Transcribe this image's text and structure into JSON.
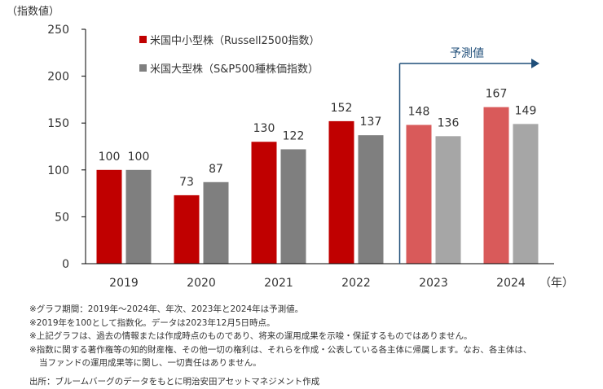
{
  "chart_data": {
    "type": "bar",
    "ylabel": "（指数値）",
    "xunit": "（年）",
    "ylim": [
      0,
      250
    ],
    "yticks": [
      0,
      50,
      100,
      150,
      200,
      250
    ],
    "categories": [
      "2019",
      "2020",
      "2021",
      "2022",
      "2023",
      "2024"
    ],
    "forecast_label": "予測値",
    "forecast_start_category": "2023",
    "series": [
      {
        "name": "米国中小型株（Russell2500指数）",
        "values": [
          100,
          73,
          130,
          152,
          148,
          167
        ],
        "color": "#c00000",
        "forecast_color": "#d95a5a"
      },
      {
        "name": "米国大型株（S&P500種株価指数）",
        "values": [
          100,
          87,
          122,
          137,
          136,
          149
        ],
        "color": "#7f7f7f",
        "forecast_color": "#a6a6a6"
      }
    ],
    "legend": "top-left",
    "grid": false
  },
  "colors": {
    "axis": "#000000",
    "arrow": "#1f4e79",
    "text": "#333333"
  },
  "notes": [
    "※グラフ期間：2019年～2024年、年次、2023年と2024年は予測値。",
    "※2019年を100として指数化。データは2023年12月5日時点。",
    "※上記グラフは、過去の情報または作成時点のものであり、将来の運用成果を示唆・保証するものではありません。",
    "※指数に関する著作権等の知的財産権、その他一切の権利は、それらを作成・公表している各主体に帰属します。なお、各主体は、",
    "当ファンドの運用成果等に関し、一切責任はありません。"
  ],
  "source": "出所：ブルームバーグのデータをもとに明治安田アセットマネジメント作成"
}
